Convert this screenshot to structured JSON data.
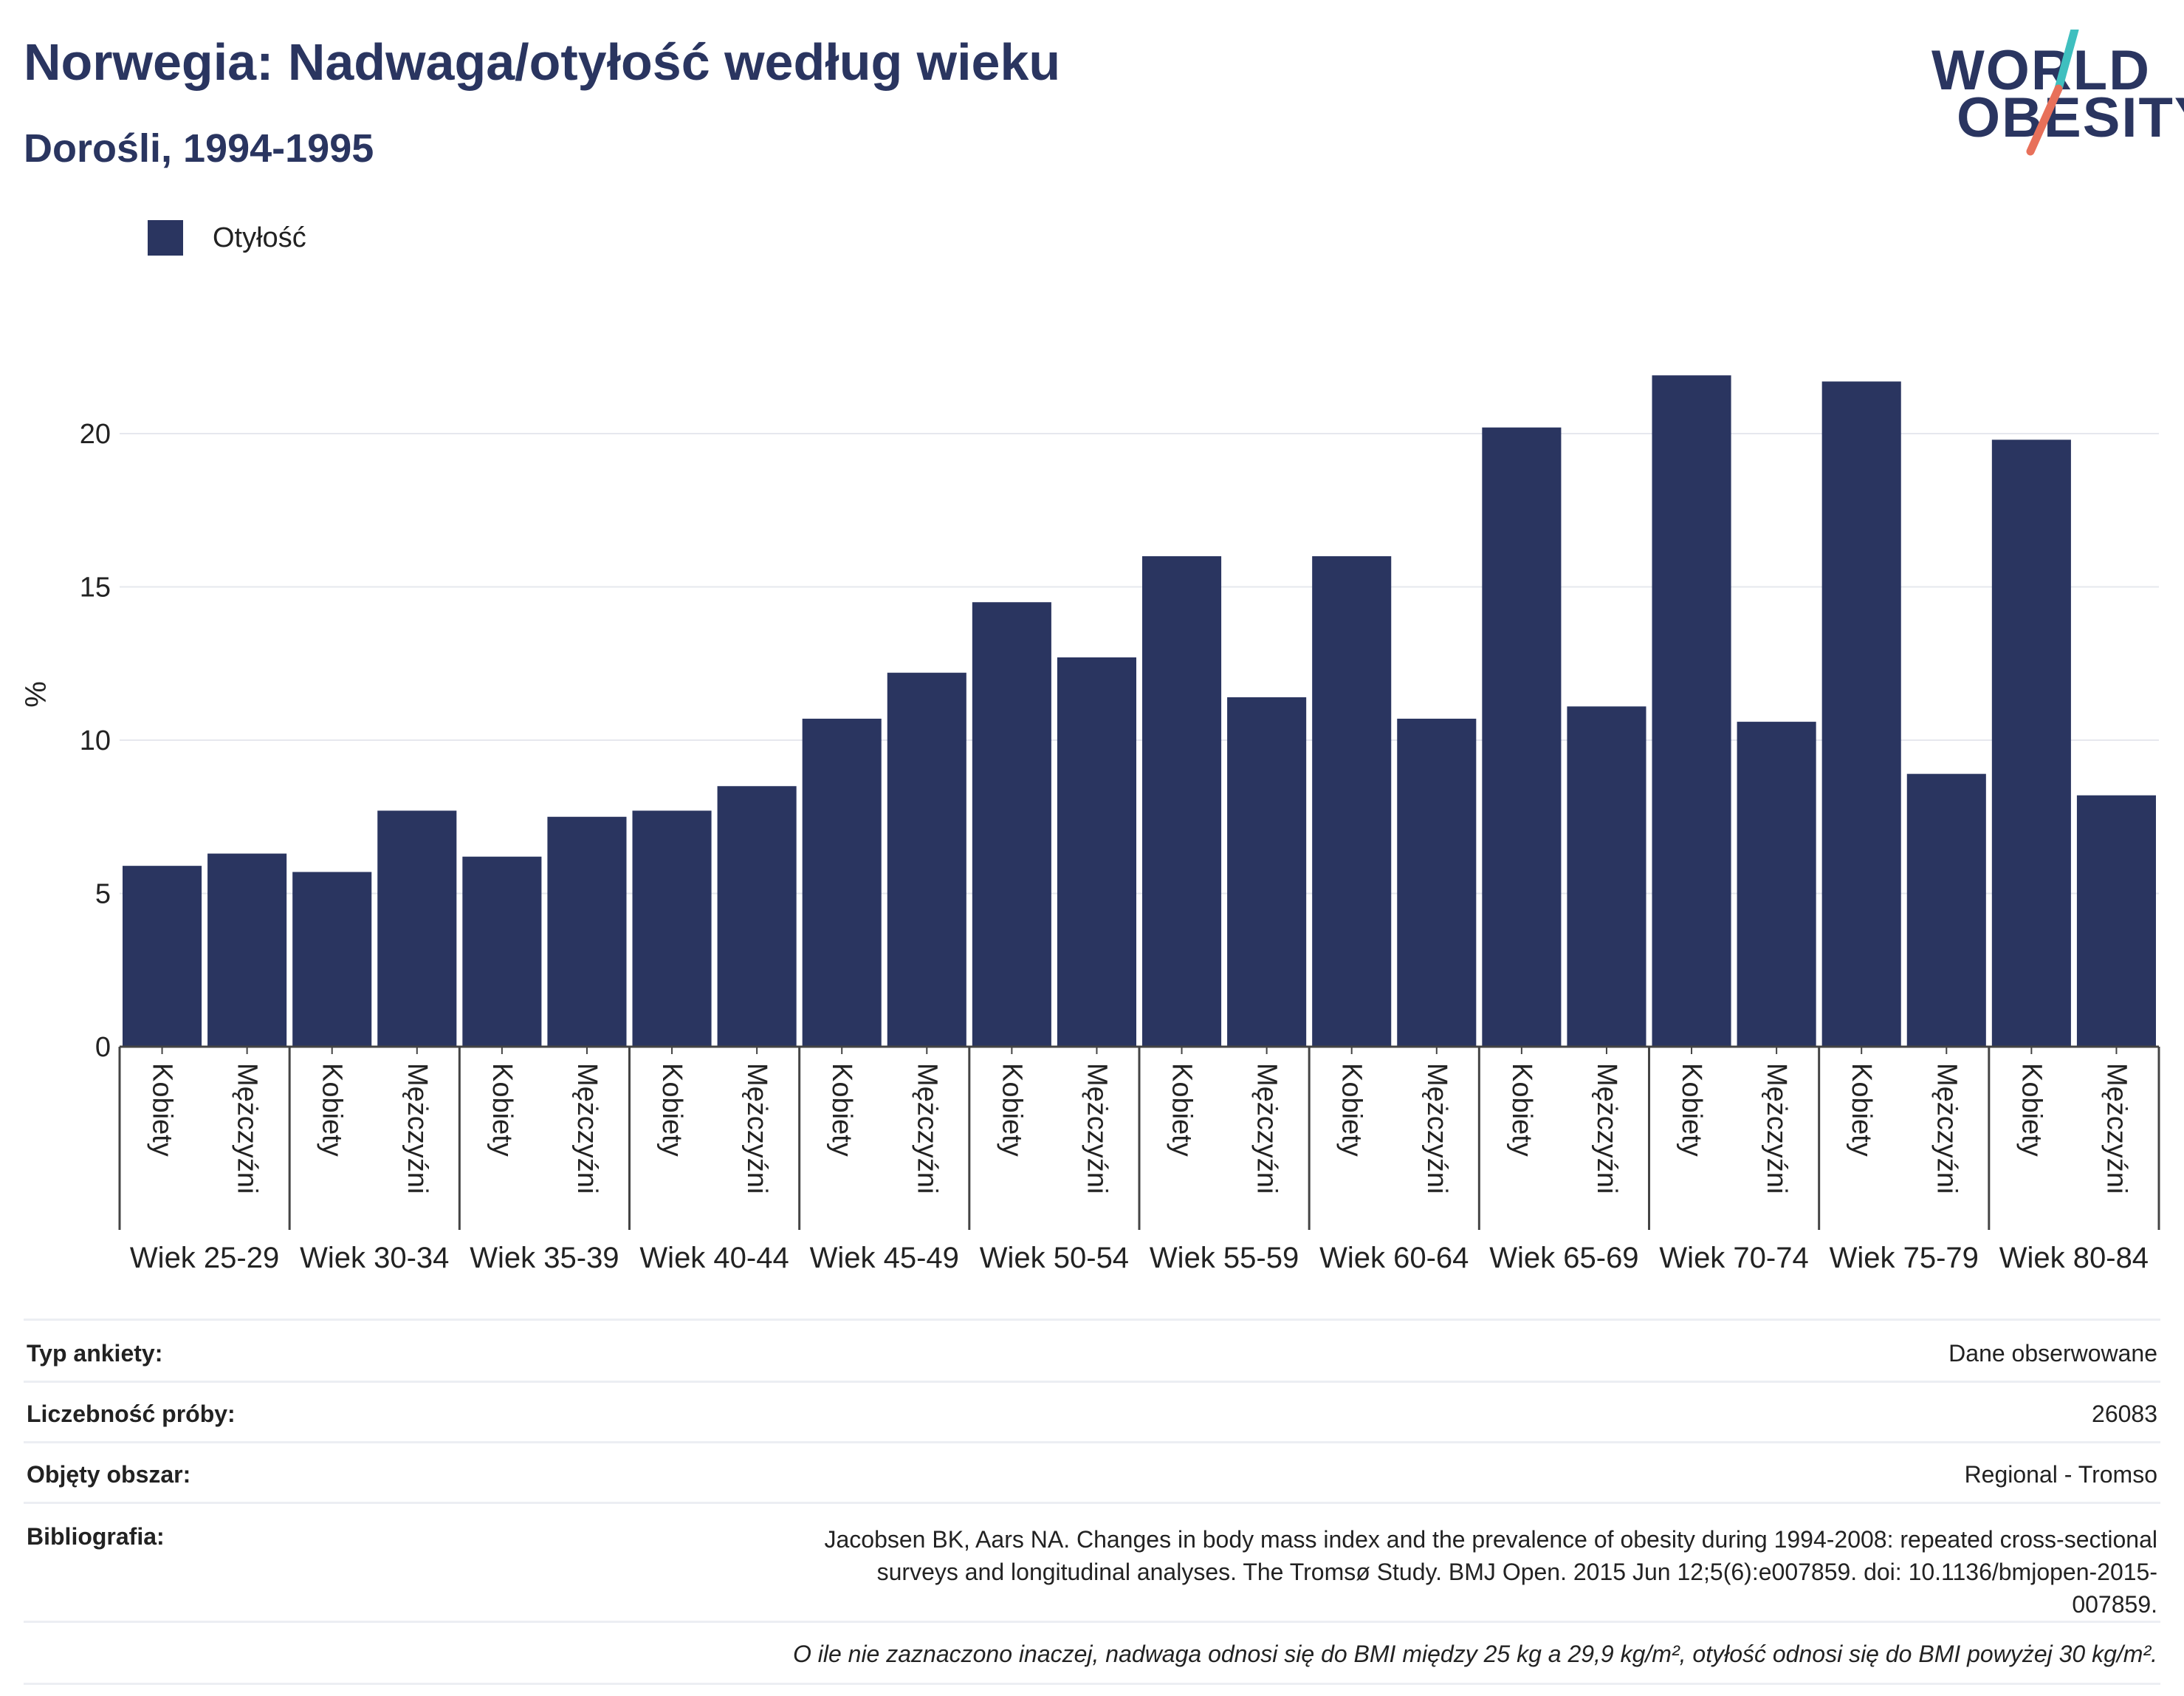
{
  "header": {
    "title": "Norwegia: Nadwaga/otyłość według wieku",
    "subtitle": "Dorośli, 1994-1995"
  },
  "logo": {
    "line1": "WORLD",
    "line2": "OBESITY",
    "colors": {
      "text": "#2a3560",
      "slash_top": "#3fbfbf",
      "slash_bottom": "#e8705a"
    }
  },
  "legend": {
    "items": [
      {
        "label": "Otyłość",
        "color": "#2a3560"
      }
    ]
  },
  "chart_data": {
    "type": "bar",
    "ylabel": "%",
    "ylim": [
      0,
      24
    ],
    "yticks": [
      0,
      5,
      10,
      15,
      20
    ],
    "grid": true,
    "legend_position": "top-left",
    "bar_color": "#2a3560",
    "groups": [
      "Wiek 25-29",
      "Wiek 30-34",
      "Wiek 35-39",
      "Wiek 40-44",
      "Wiek 45-49",
      "Wiek 50-54",
      "Wiek 55-59",
      "Wiek 60-64",
      "Wiek 65-69",
      "Wiek 70-74",
      "Wiek 75-79",
      "Wiek 80-84"
    ],
    "subcategories": [
      "Kobiety",
      "Mężczyźni"
    ],
    "series": [
      {
        "name": "Otyłość",
        "values": [
          [
            5.9,
            6.3
          ],
          [
            5.7,
            7.7
          ],
          [
            6.2,
            7.5
          ],
          [
            7.7,
            8.5
          ],
          [
            10.7,
            12.2
          ],
          [
            14.5,
            12.7
          ],
          [
            16.0,
            11.4
          ],
          [
            16.0,
            10.7
          ],
          [
            20.2,
            11.1
          ],
          [
            21.9,
            10.6
          ],
          [
            21.7,
            8.9
          ],
          [
            19.8,
            8.2
          ]
        ]
      }
    ]
  },
  "info": {
    "rows": [
      {
        "label": "Typ ankiety:",
        "value": "Dane obserwowane"
      },
      {
        "label": "Liczebność próby:",
        "value": "26083"
      },
      {
        "label": "Objęty obszar:",
        "value": "Regional - Tromso"
      },
      {
        "label": "Bibliografia:",
        "value": "Jacobsen BK, Aars NA. Changes in body mass index and the prevalence of obesity during 1994-2008: repeated cross-sectional surveys and longitudinal analyses. The Tromsø Study. BMJ Open. 2015 Jun 12;5(6):e007859. doi: 10.1136/bmjopen-2015-007859."
      }
    ],
    "note": "O ile nie zaznaczono inaczej, nadwaga odnosi się do BMI między 25 kg a 29,9 kg/m², otyłość odnosi się do BMI powyżej 30 kg/m²."
  }
}
